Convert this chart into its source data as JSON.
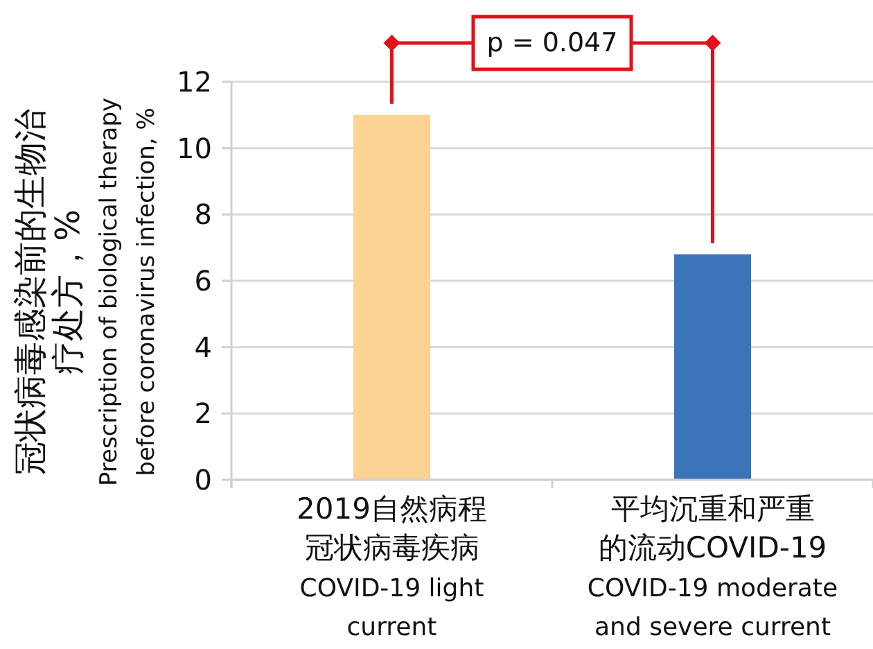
{
  "chart_data": {
    "type": "bar",
    "categories": [
      "2019自然病程冠状病毒疾病\nCOVID-19 light\ncurrent",
      "平均沉重和严重的流动COVID-19\nCOVID-19 moderate\nand severe current"
    ],
    "values": [
      11.0,
      6.8
    ],
    "colors": [
      "#fcd392",
      "#3b74b8"
    ],
    "ylabel": "冠状病毒感染前的生物治疗处方，%\nPrescription of biological therapy\nbefore coronavirus infection, %",
    "ylim": [
      0,
      12
    ],
    "yticks": [
      0,
      2,
      4,
      6,
      8,
      10,
      12
    ],
    "grid": "y",
    "annotations": [
      "p = 0.047"
    ]
  }
}
